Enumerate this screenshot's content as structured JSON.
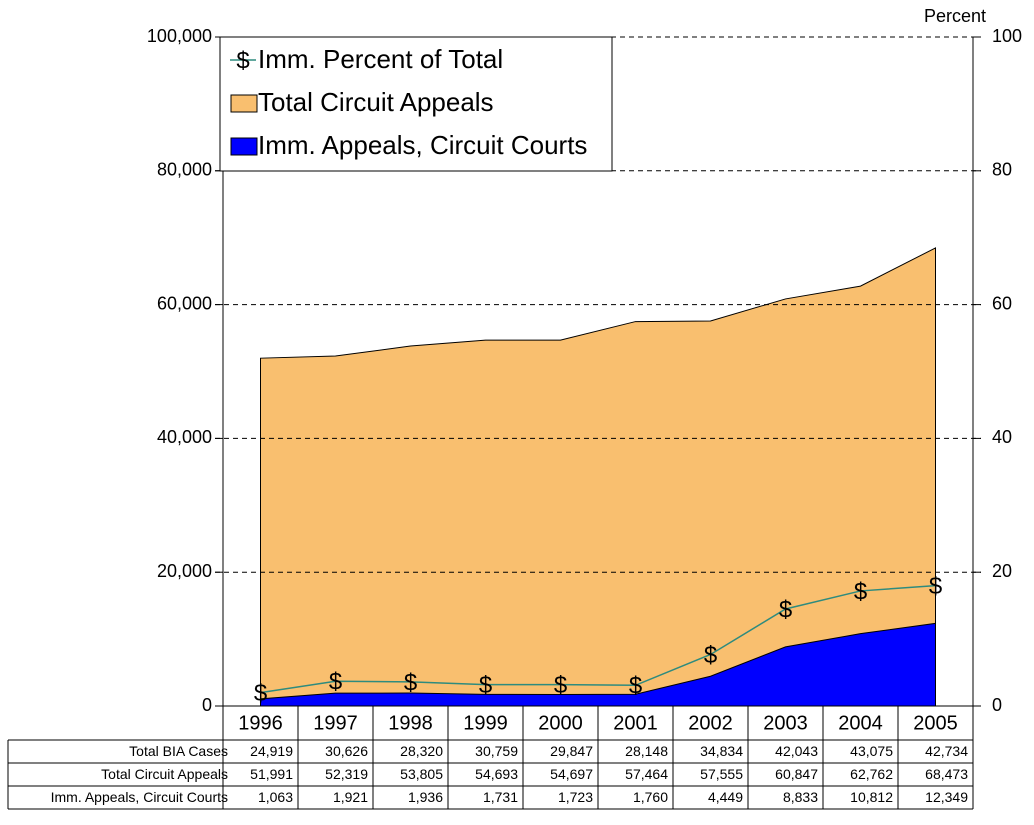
{
  "chart_data": {
    "type": "area",
    "y2_label": "Percent",
    "categories": [
      "1996",
      "1997",
      "1998",
      "1999",
      "2000",
      "2001",
      "2002",
      "2003",
      "2004",
      "2005"
    ],
    "series": [
      {
        "name": "Imm. Percent of Total",
        "type": "line",
        "axis": "y2",
        "color": "#2e8b7e",
        "marker": "$",
        "values": [
          2.0,
          3.7,
          3.6,
          3.2,
          3.2,
          3.1,
          7.7,
          14.5,
          17.2,
          18.0
        ]
      },
      {
        "name": "Total Circuit Appeals",
        "type": "area",
        "color": "#f9bf6f",
        "values": [
          51991,
          52319,
          53805,
          54693,
          54697,
          57464,
          57555,
          60847,
          62762,
          68473
        ],
        "value_labels": [
          "51,991",
          "52,319",
          "53,805",
          "54,693",
          "54,697",
          "57,464",
          "57,555",
          "60,847",
          "62,762",
          "68,473"
        ]
      },
      {
        "name": "Imm. Appeals, Circuit Courts",
        "type": "area",
        "color": "#0000ff",
        "values": [
          1063,
          1921,
          1936,
          1731,
          1723,
          1760,
          4449,
          8833,
          10812,
          12349
        ],
        "value_labels": [
          "1,063",
          "1,921",
          "1,936",
          "1,731",
          "1,723",
          "1,760",
          "4,449",
          "8,833",
          "10,812",
          "12,349"
        ]
      }
    ],
    "table_rows": [
      {
        "name": "Total BIA Cases",
        "value_labels": [
          "24,919",
          "30,626",
          "28,320",
          "30,759",
          "29,847",
          "28,148",
          "34,834",
          "42,043",
          "43,075",
          "42,734"
        ]
      }
    ],
    "ylim": [
      0,
      100000
    ],
    "yticks": [
      0,
      {
        "value": 20000,
        "label": "20,000"
      },
      {
        "value": 40000,
        "label": "40,000"
      },
      {
        "value": 60000,
        "label": "60,000"
      },
      {
        "value": 80000,
        "label": "80,000"
      },
      {
        "value": 100000,
        "label": "100,000"
      }
    ],
    "y2lim": [
      0,
      100
    ],
    "y2ticks": [
      0,
      20,
      40,
      60,
      80,
      100
    ],
    "grid": true,
    "legend": "top-left"
  }
}
